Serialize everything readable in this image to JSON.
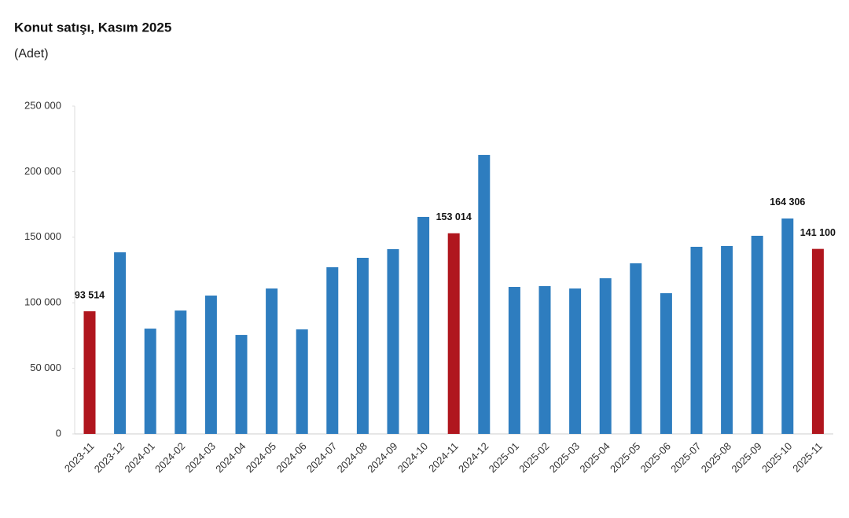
{
  "chart_data": {
    "type": "bar",
    "title": "Konut satışı, Kasım 2025",
    "subtitle": "(Adet)",
    "categories": [
      "2023-11",
      "2023-12",
      "2024-01",
      "2024-02",
      "2024-03",
      "2024-04",
      "2024-05",
      "2024-06",
      "2024-07",
      "2024-08",
      "2024-09",
      "2024-10",
      "2024-11",
      "2024-12",
      "2025-01",
      "2025-02",
      "2025-03",
      "2025-04",
      "2025-05",
      "2025-06",
      "2025-07",
      "2025-08",
      "2025-09",
      "2025-10",
      "2025-11"
    ],
    "values": [
      93514,
      138500,
      80300,
      94100,
      105500,
      75500,
      110900,
      79700,
      127100,
      134300,
      140900,
      165500,
      153014,
      212800,
      112100,
      112700,
      110900,
      118700,
      130100,
      107300,
      142700,
      143300,
      151100,
      164306,
      141100
    ],
    "value_labels": [
      "93 514",
      null,
      null,
      null,
      null,
      null,
      null,
      null,
      null,
      null,
      null,
      null,
      "153 014",
      null,
      null,
      null,
      null,
      null,
      null,
      null,
      null,
      null,
      null,
      "164 306",
      "141 100"
    ],
    "colors": [
      "#b0161e",
      "#2e7dbf",
      "#2e7dbf",
      "#2e7dbf",
      "#2e7dbf",
      "#2e7dbf",
      "#2e7dbf",
      "#2e7dbf",
      "#2e7dbf",
      "#2e7dbf",
      "#2e7dbf",
      "#2e7dbf",
      "#b0161e",
      "#2e7dbf",
      "#2e7dbf",
      "#2e7dbf",
      "#2e7dbf",
      "#2e7dbf",
      "#2e7dbf",
      "#2e7dbf",
      "#2e7dbf",
      "#2e7dbf",
      "#2e7dbf",
      "#2e7dbf",
      "#b0161e"
    ],
    "ylim": [
      0,
      250000
    ],
    "yticks": [
      0,
      {
        "value": 50000,
        "label": "50 000"
      },
      {
        "value": 100000,
        "label": "100 000"
      },
      {
        "value": 150000,
        "label": "150 000"
      },
      {
        "value": 200000,
        "label": "200 000"
      },
      {
        "value": 250000,
        "label": "250 000"
      }
    ],
    "grid": false
  }
}
